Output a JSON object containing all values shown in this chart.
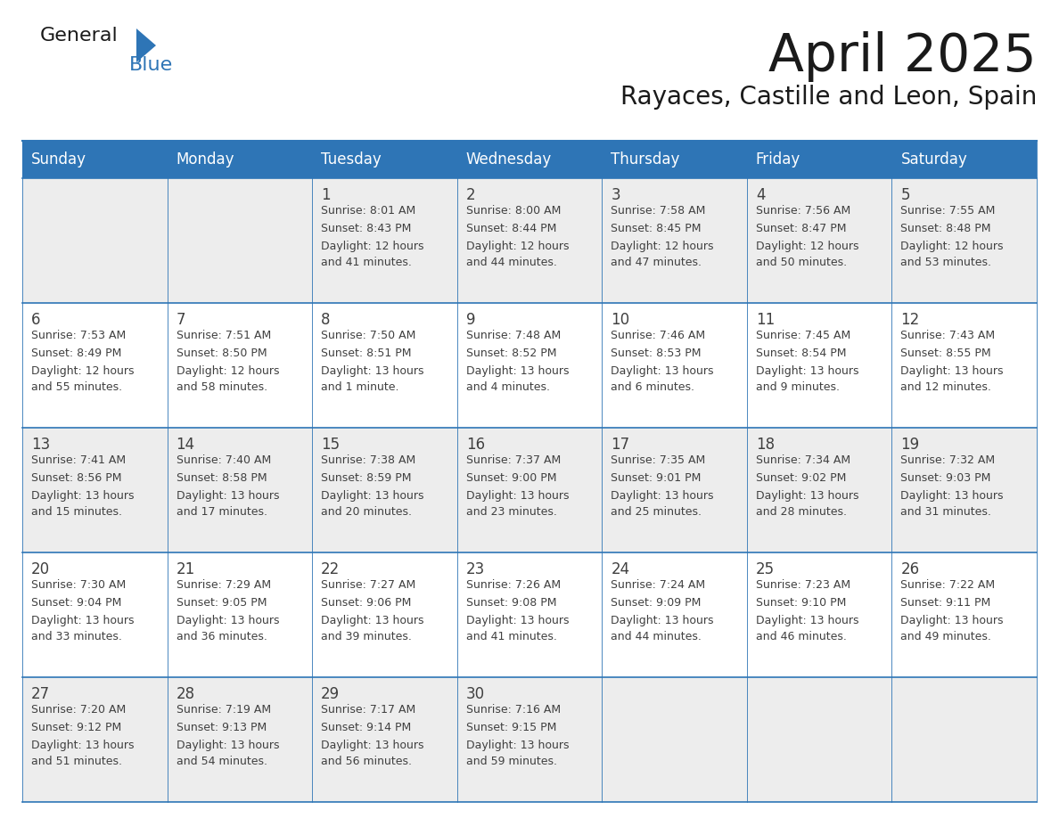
{
  "title": "April 2025",
  "subtitle": "Rayaces, Castille and Leon, Spain",
  "header_bg": "#2E75B6",
  "header_text_color": "#FFFFFF",
  "cell_bg_gray": "#EDEDED",
  "cell_bg_white": "#FFFFFF",
  "border_color": "#2E75B6",
  "text_color": "#404040",
  "days_of_week": [
    "Sunday",
    "Monday",
    "Tuesday",
    "Wednesday",
    "Thursday",
    "Friday",
    "Saturday"
  ],
  "calendar": [
    [
      {
        "day": "",
        "sunrise": "",
        "sunset": "",
        "daylight": ""
      },
      {
        "day": "",
        "sunrise": "",
        "sunset": "",
        "daylight": ""
      },
      {
        "day": "1",
        "sunrise": "Sunrise: 8:01 AM",
        "sunset": "Sunset: 8:43 PM",
        "daylight": "Daylight: 12 hours\nand 41 minutes."
      },
      {
        "day": "2",
        "sunrise": "Sunrise: 8:00 AM",
        "sunset": "Sunset: 8:44 PM",
        "daylight": "Daylight: 12 hours\nand 44 minutes."
      },
      {
        "day": "3",
        "sunrise": "Sunrise: 7:58 AM",
        "sunset": "Sunset: 8:45 PM",
        "daylight": "Daylight: 12 hours\nand 47 minutes."
      },
      {
        "day": "4",
        "sunrise": "Sunrise: 7:56 AM",
        "sunset": "Sunset: 8:47 PM",
        "daylight": "Daylight: 12 hours\nand 50 minutes."
      },
      {
        "day": "5",
        "sunrise": "Sunrise: 7:55 AM",
        "sunset": "Sunset: 8:48 PM",
        "daylight": "Daylight: 12 hours\nand 53 minutes."
      }
    ],
    [
      {
        "day": "6",
        "sunrise": "Sunrise: 7:53 AM",
        "sunset": "Sunset: 8:49 PM",
        "daylight": "Daylight: 12 hours\nand 55 minutes."
      },
      {
        "day": "7",
        "sunrise": "Sunrise: 7:51 AM",
        "sunset": "Sunset: 8:50 PM",
        "daylight": "Daylight: 12 hours\nand 58 minutes."
      },
      {
        "day": "8",
        "sunrise": "Sunrise: 7:50 AM",
        "sunset": "Sunset: 8:51 PM",
        "daylight": "Daylight: 13 hours\nand 1 minute."
      },
      {
        "day": "9",
        "sunrise": "Sunrise: 7:48 AM",
        "sunset": "Sunset: 8:52 PM",
        "daylight": "Daylight: 13 hours\nand 4 minutes."
      },
      {
        "day": "10",
        "sunrise": "Sunrise: 7:46 AM",
        "sunset": "Sunset: 8:53 PM",
        "daylight": "Daylight: 13 hours\nand 6 minutes."
      },
      {
        "day": "11",
        "sunrise": "Sunrise: 7:45 AM",
        "sunset": "Sunset: 8:54 PM",
        "daylight": "Daylight: 13 hours\nand 9 minutes."
      },
      {
        "day": "12",
        "sunrise": "Sunrise: 7:43 AM",
        "sunset": "Sunset: 8:55 PM",
        "daylight": "Daylight: 13 hours\nand 12 minutes."
      }
    ],
    [
      {
        "day": "13",
        "sunrise": "Sunrise: 7:41 AM",
        "sunset": "Sunset: 8:56 PM",
        "daylight": "Daylight: 13 hours\nand 15 minutes."
      },
      {
        "day": "14",
        "sunrise": "Sunrise: 7:40 AM",
        "sunset": "Sunset: 8:58 PM",
        "daylight": "Daylight: 13 hours\nand 17 minutes."
      },
      {
        "day": "15",
        "sunrise": "Sunrise: 7:38 AM",
        "sunset": "Sunset: 8:59 PM",
        "daylight": "Daylight: 13 hours\nand 20 minutes."
      },
      {
        "day": "16",
        "sunrise": "Sunrise: 7:37 AM",
        "sunset": "Sunset: 9:00 PM",
        "daylight": "Daylight: 13 hours\nand 23 minutes."
      },
      {
        "day": "17",
        "sunrise": "Sunrise: 7:35 AM",
        "sunset": "Sunset: 9:01 PM",
        "daylight": "Daylight: 13 hours\nand 25 minutes."
      },
      {
        "day": "18",
        "sunrise": "Sunrise: 7:34 AM",
        "sunset": "Sunset: 9:02 PM",
        "daylight": "Daylight: 13 hours\nand 28 minutes."
      },
      {
        "day": "19",
        "sunrise": "Sunrise: 7:32 AM",
        "sunset": "Sunset: 9:03 PM",
        "daylight": "Daylight: 13 hours\nand 31 minutes."
      }
    ],
    [
      {
        "day": "20",
        "sunrise": "Sunrise: 7:30 AM",
        "sunset": "Sunset: 9:04 PM",
        "daylight": "Daylight: 13 hours\nand 33 minutes."
      },
      {
        "day": "21",
        "sunrise": "Sunrise: 7:29 AM",
        "sunset": "Sunset: 9:05 PM",
        "daylight": "Daylight: 13 hours\nand 36 minutes."
      },
      {
        "day": "22",
        "sunrise": "Sunrise: 7:27 AM",
        "sunset": "Sunset: 9:06 PM",
        "daylight": "Daylight: 13 hours\nand 39 minutes."
      },
      {
        "day": "23",
        "sunrise": "Sunrise: 7:26 AM",
        "sunset": "Sunset: 9:08 PM",
        "daylight": "Daylight: 13 hours\nand 41 minutes."
      },
      {
        "day": "24",
        "sunrise": "Sunrise: 7:24 AM",
        "sunset": "Sunset: 9:09 PM",
        "daylight": "Daylight: 13 hours\nand 44 minutes."
      },
      {
        "day": "25",
        "sunrise": "Sunrise: 7:23 AM",
        "sunset": "Sunset: 9:10 PM",
        "daylight": "Daylight: 13 hours\nand 46 minutes."
      },
      {
        "day": "26",
        "sunrise": "Sunrise: 7:22 AM",
        "sunset": "Sunset: 9:11 PM",
        "daylight": "Daylight: 13 hours\nand 49 minutes."
      }
    ],
    [
      {
        "day": "27",
        "sunrise": "Sunrise: 7:20 AM",
        "sunset": "Sunset: 9:12 PM",
        "daylight": "Daylight: 13 hours\nand 51 minutes."
      },
      {
        "day": "28",
        "sunrise": "Sunrise: 7:19 AM",
        "sunset": "Sunset: 9:13 PM",
        "daylight": "Daylight: 13 hours\nand 54 minutes."
      },
      {
        "day": "29",
        "sunrise": "Sunrise: 7:17 AM",
        "sunset": "Sunset: 9:14 PM",
        "daylight": "Daylight: 13 hours\nand 56 minutes."
      },
      {
        "day": "30",
        "sunrise": "Sunrise: 7:16 AM",
        "sunset": "Sunset: 9:15 PM",
        "daylight": "Daylight: 13 hours\nand 59 minutes."
      },
      {
        "day": "",
        "sunrise": "",
        "sunset": "",
        "daylight": ""
      },
      {
        "day": "",
        "sunrise": "",
        "sunset": "",
        "daylight": ""
      },
      {
        "day": "",
        "sunrise": "",
        "sunset": "",
        "daylight": ""
      }
    ]
  ],
  "logo_text1": "General",
  "logo_text2": "Blue",
  "logo_text1_color": "#1a1a1a",
  "logo_text2_color": "#2E75B6",
  "logo_triangle_color": "#2E75B6",
  "title_fontsize": 42,
  "subtitle_fontsize": 20,
  "header_fontsize": 12,
  "day_num_fontsize": 12,
  "cell_text_fontsize": 9
}
